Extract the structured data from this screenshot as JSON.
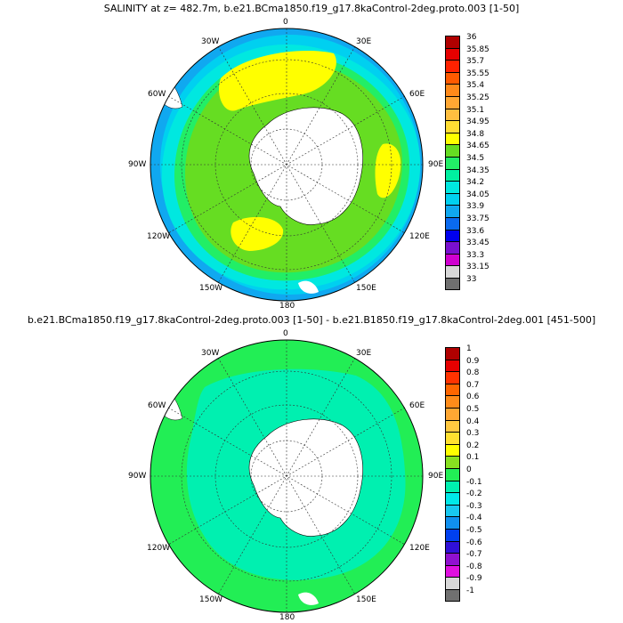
{
  "panels": [
    {
      "title": "SALINITY at z= 482.7m, b.e21.BCma1850.f19_g17.8kaControl-2deg.proto.003 [1-50]",
      "lon_labels": {
        "n": "0",
        "ne30": "30E",
        "ne60": "60E",
        "e": "90E",
        "se120": "120E",
        "se150": "150E",
        "s": "180",
        "sw150": "150W",
        "sw120": "120W",
        "w": "90W",
        "nw60": "60W",
        "nw30": "30W"
      },
      "colorbar": {
        "labels": [
          "36",
          "35.85",
          "35.7",
          "35.55",
          "35.4",
          "35.25",
          "35.1",
          "34.95",
          "34.8",
          "34.65",
          "34.5",
          "34.35",
          "34.2",
          "34.05",
          "33.9",
          "33.75",
          "33.6",
          "33.45",
          "33.3",
          "33.15",
          "33"
        ],
        "colors": [
          "#b00000",
          "#e60000",
          "#ff2200",
          "#ff5a00",
          "#ff8a1a",
          "#ffa733",
          "#ffbf40",
          "#ffdd33",
          "#ffff00",
          "#66dd22",
          "#22ee66",
          "#00f0a0",
          "#00e8e0",
          "#00d0f0",
          "#10a8f0",
          "#0a6af0",
          "#0000ee",
          "#7a10d0",
          "#d000d0",
          "#d8d8d8",
          "#707070"
        ]
      }
    },
    {
      "title": "b.e21.BCma1850.f19_g17.8kaControl-2deg.proto.003 [1-50] - b.e21.B1850.f19_g17.8kaControl-2deg.001 [451-500]",
      "lon_labels": {
        "n": "0",
        "ne30": "30E",
        "ne60": "60E",
        "e": "90E",
        "se120": "120E",
        "se150": "150E",
        "s": "180",
        "sw150": "150W",
        "sw120": "120W",
        "w": "90W",
        "nw60": "60W",
        "nw30": "30W"
      },
      "colorbar": {
        "labels": [
          "1",
          "0.9",
          "0.8",
          "0.7",
          "0.6",
          "0.5",
          "0.4",
          "0.3",
          "0.2",
          "0.1",
          "0",
          "-0.1",
          "-0.2",
          "-0.3",
          "-0.4",
          "-0.5",
          "-0.6",
          "-0.7",
          "-0.8",
          "-0.9",
          "-1"
        ],
        "colors": [
          "#b00000",
          "#e60000",
          "#ff3300",
          "#ff6600",
          "#ff8c1a",
          "#ffa733",
          "#ffc840",
          "#ffe030",
          "#ffff00",
          "#88e020",
          "#22ee55",
          "#00f0b0",
          "#00e8e8",
          "#18c8f0",
          "#1090f0",
          "#0040f0",
          "#3010d8",
          "#9010d0",
          "#e010e0",
          "#d8d8d8",
          "#707070"
        ]
      }
    }
  ],
  "colors": {
    "land": "#ffffff",
    "ocean_top_base": "#66dd22",
    "ocean_top_high": "#ffff00",
    "ocean_top_mid": "#22ee66",
    "ocean_top_low": "#00e8e0",
    "ocean_top_lowest": "#10a8f0",
    "ocean_bottom_base": "#22ee55",
    "ocean_bottom_shelf": "#00f0b0"
  }
}
